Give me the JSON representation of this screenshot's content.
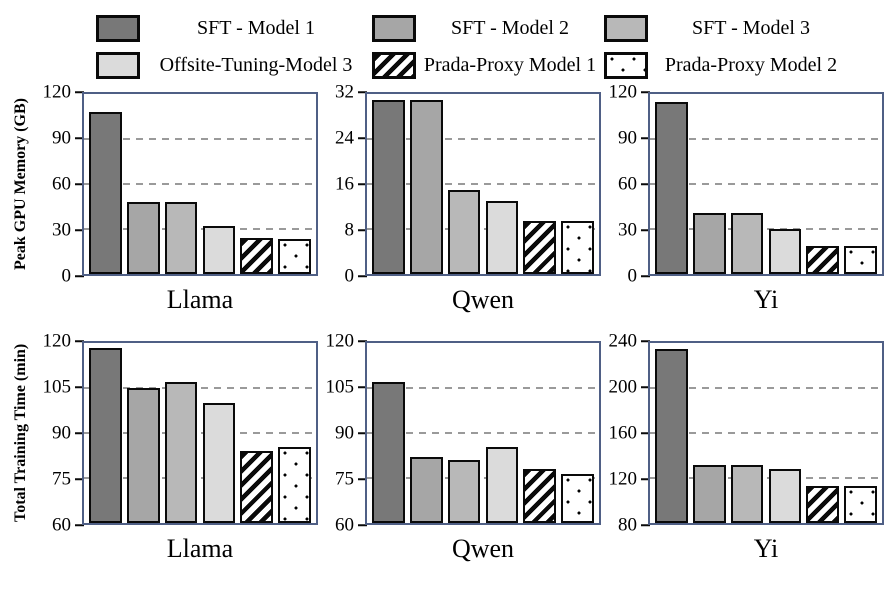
{
  "legend": {
    "items": [
      {
        "label": "SFT - Model 1",
        "pattern": "solid",
        "fill": "#787878",
        "name": "sft-model-1"
      },
      {
        "label": "SFT - Model 2",
        "pattern": "solid",
        "fill": "#a6a6a6",
        "name": "sft-model-2"
      },
      {
        "label": "SFT - Model 3",
        "pattern": "solid",
        "fill": "#b8b8b8",
        "name": "sft-model-3"
      },
      {
        "label": "Offsite-Tuning-Model 3",
        "pattern": "solid",
        "fill": "#dbdbdb",
        "name": "offsite-tuning-model-3"
      },
      {
        "label": "Prada-Proxy Model 1",
        "pattern": "hatch",
        "fill": "#ffffff",
        "name": "prada-proxy-model-1"
      },
      {
        "label": "Prada-Proxy Model 2",
        "pattern": "dots",
        "fill": "#ffffff",
        "name": "prada-proxy-model-2"
      }
    ]
  },
  "rows": [
    {
      "ylabel": "Peak GPU Memory (GB)"
    },
    {
      "ylabel": "Total Training Time (min)"
    }
  ],
  "colors": {
    "axis_border": "#4f5f85",
    "gridline": "#9a9a9a",
    "bar_edge": "#0a0a0a"
  },
  "chart_data": [
    {
      "type": "bar",
      "category": "Llama",
      "ylabel": "Peak GPU Memory (GB)",
      "ylim": [
        0,
        120
      ],
      "yticks": [
        0,
        30,
        60,
        90,
        120
      ],
      "grid": "dashed-horizontal",
      "series_labels": [
        "SFT - Model 1",
        "SFT - Model 2",
        "SFT - Model 3",
        "Offsite-Tuning-Model 3",
        "Prada-Proxy Model 1",
        "Prada-Proxy Model 2"
      ],
      "values": [
        108,
        48,
        48,
        32,
        24,
        23.5
      ]
    },
    {
      "type": "bar",
      "category": "Qwen",
      "ylabel": "Peak GPU Memory (GB)",
      "ylim": [
        0,
        32
      ],
      "yticks": [
        0,
        8,
        16,
        24,
        32
      ],
      "grid": "dashed-horizontal",
      "series_labels": [
        "SFT - Model 1",
        "SFT - Model 2",
        "SFT - Model 3",
        "Offsite-Tuning-Model 3",
        "Prada-Proxy Model 1",
        "Prada-Proxy Model 2"
      ],
      "values": [
        31,
        31,
        15,
        13,
        9.5,
        9.5
      ]
    },
    {
      "type": "bar",
      "category": "Yi",
      "ylabel": "Peak GPU Memory (GB)",
      "ylim": [
        0,
        120
      ],
      "yticks": [
        0,
        30,
        60,
        90,
        120
      ],
      "grid": "dashed-horizontal",
      "series_labels": [
        "SFT - Model 1",
        "SFT - Model 2",
        "SFT - Model 3",
        "Offsite-Tuning-Model 3",
        "Prada-Proxy Model 1",
        "Prada-Proxy Model 2"
      ],
      "values": [
        115,
        41,
        41,
        30,
        19,
        19
      ]
    },
    {
      "type": "bar",
      "category": "Llama",
      "ylabel": "Total Training Time (min)",
      "ylim": [
        60,
        120
      ],
      "yticks": [
        60,
        75,
        90,
        105,
        120
      ],
      "grid": "dashed-horizontal",
      "series_labels": [
        "SFT - Model 1",
        "SFT - Model 2",
        "SFT - Model 3",
        "Offsite-Tuning-Model 3",
        "Prada-Proxy Model 1",
        "Prada-Proxy Model 2"
      ],
      "values": [
        118.5,
        105,
        107,
        100,
        84,
        85.5
      ]
    },
    {
      "type": "bar",
      "category": "Qwen",
      "ylabel": "Total Training Time (min)",
      "ylim": [
        60,
        120
      ],
      "yticks": [
        60,
        75,
        90,
        105,
        120
      ],
      "grid": "dashed-horizontal",
      "series_labels": [
        "SFT - Model 1",
        "SFT - Model 2",
        "SFT - Model 3",
        "Offsite-Tuning-Model 3",
        "Prada-Proxy Model 1",
        "Prada-Proxy Model 2"
      ],
      "values": [
        107,
        82,
        81,
        85.5,
        78,
        76.5
      ]
    },
    {
      "type": "bar",
      "category": "Yi",
      "ylabel": "Total Training Time (min)",
      "ylim": [
        80,
        240
      ],
      "yticks": [
        80,
        120,
        160,
        200,
        240
      ],
      "grid": "dashed-horizontal",
      "series_labels": [
        "SFT - Model 1",
        "SFT - Model 2",
        "SFT - Model 3",
        "Offsite-Tuning-Model 3",
        "Prada-Proxy Model 1",
        "Prada-Proxy Model 2"
      ],
      "values": [
        235,
        132,
        132,
        128,
        113,
        113
      ]
    }
  ]
}
